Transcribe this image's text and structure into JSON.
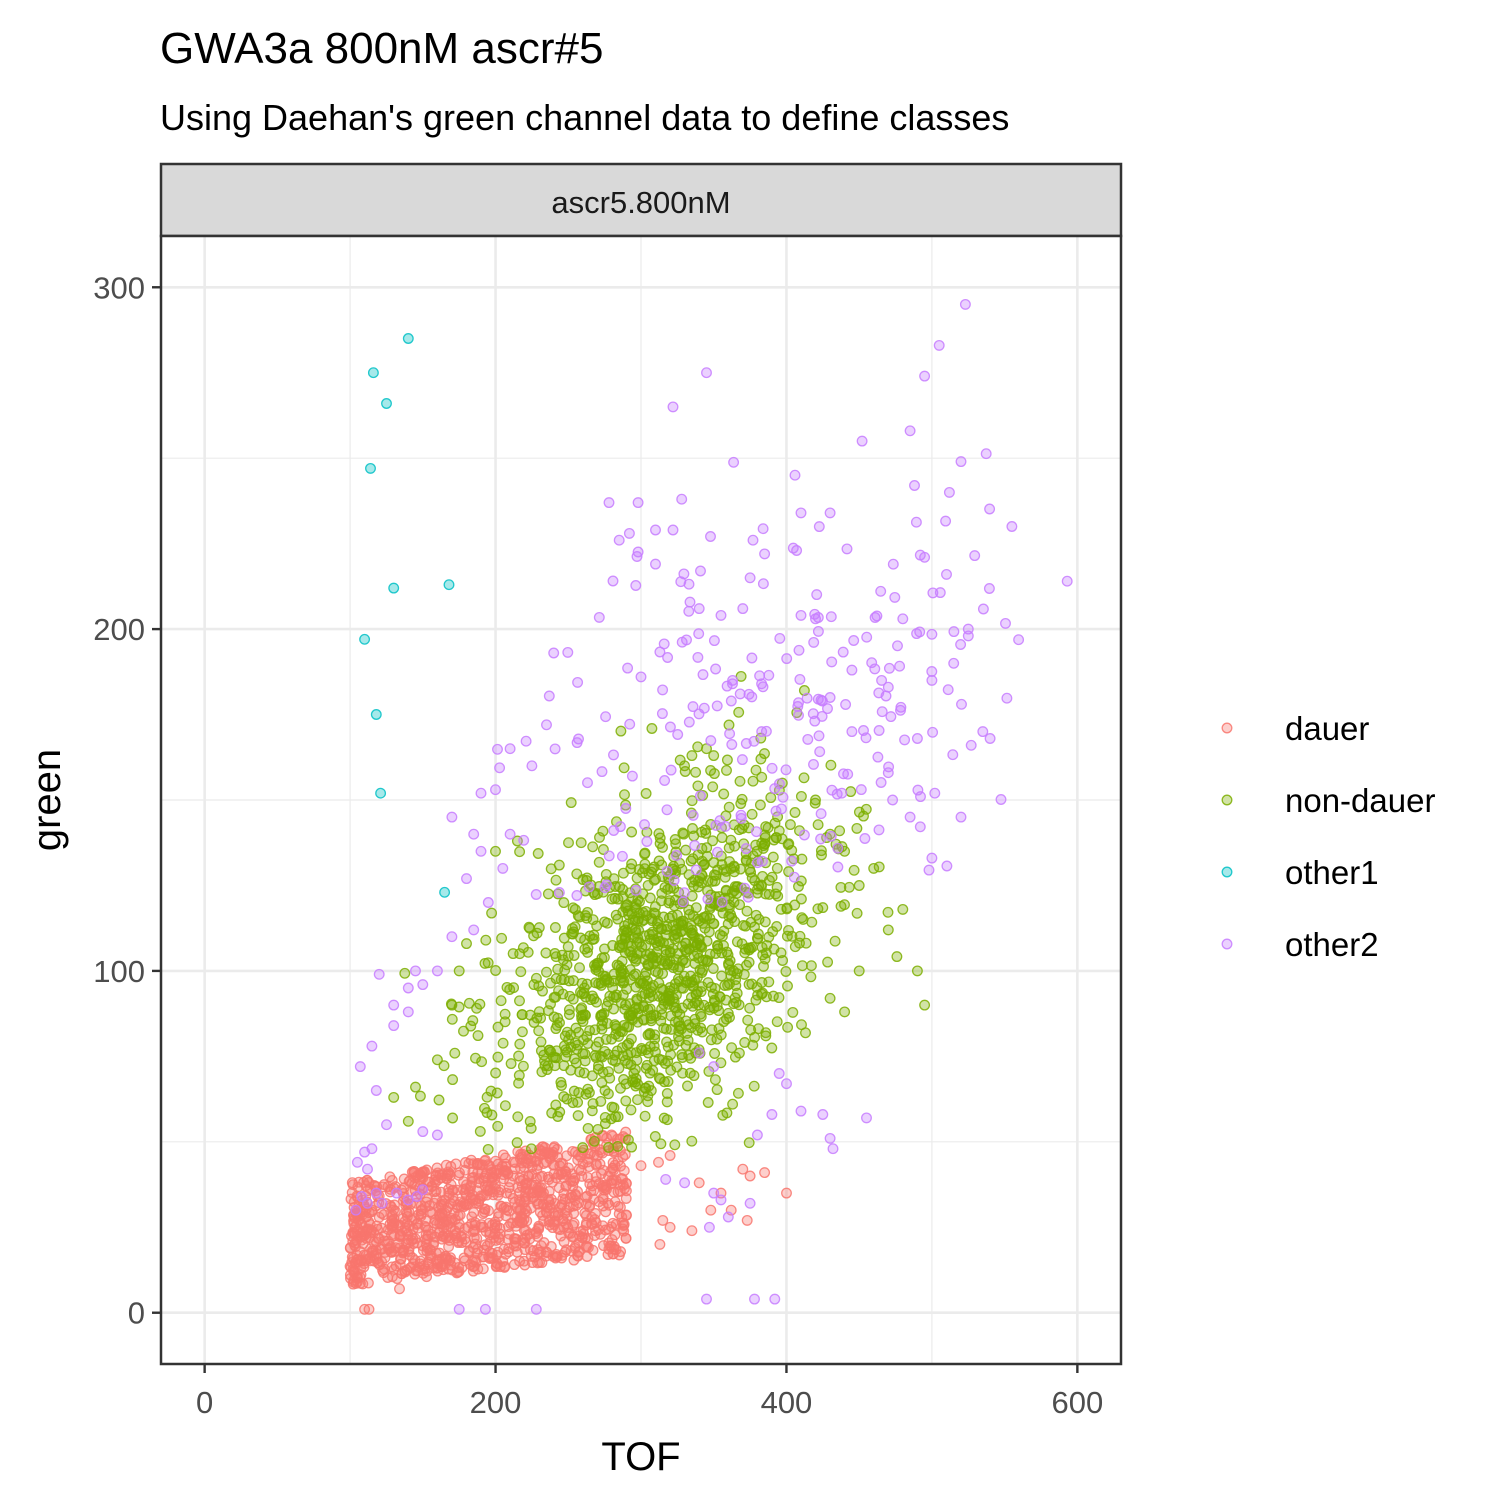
{
  "chart_data": {
    "type": "scatter",
    "title": "GWA3a 800nM ascr#5",
    "subtitle": "Using Daehan's green channel data to define classes",
    "facet_label": "ascr5.800nM",
    "xlabel": "TOF",
    "ylabel": "green",
    "xlim": [
      -30,
      630
    ],
    "ylim": [
      -15,
      315
    ],
    "xticks": [
      0,
      200,
      400,
      600
    ],
    "yticks": [
      0,
      100,
      200,
      300
    ],
    "grid": true,
    "legend_position": "right",
    "series": [
      {
        "name": "dauer",
        "color": "#F8766D",
        "generator": {
          "x_range": [
            100,
            290
          ],
          "y_base": [
            8,
            38
          ],
          "y_slope": 0.08,
          "count": 1100,
          "seed": 11
        },
        "points": [
          [
            110,
            1
          ],
          [
            113,
            1
          ],
          [
            134,
            7
          ],
          [
            165,
            33
          ],
          [
            235,
            44
          ],
          [
            255,
            47
          ],
          [
            270,
            46
          ],
          [
            300,
            43
          ],
          [
            312,
            44
          ],
          [
            320,
            46
          ],
          [
            340,
            38
          ],
          [
            355,
            35
          ],
          [
            362,
            30
          ],
          [
            370,
            42
          ],
          [
            375,
            40
          ],
          [
            385,
            41
          ],
          [
            400,
            35
          ],
          [
            315,
            27
          ],
          [
            320,
            25
          ],
          [
            335,
            24
          ],
          [
            348,
            30
          ],
          [
            373,
            27
          ],
          [
            313,
            20
          ]
        ]
      },
      {
        "name": "non-dauer",
        "color": "#7CAE00",
        "generator": {
          "center": [
            310,
            100
          ],
          "sd": [
            55,
            26
          ],
          "corr": 0.45,
          "count": 1200,
          "seed": 23,
          "y_min": 47
        },
        "points": [
          [
            130,
            63
          ],
          [
            140,
            56
          ],
          [
            145,
            66
          ],
          [
            160,
            74
          ],
          [
            170,
            90
          ],
          [
            175,
            100
          ],
          [
            180,
            108
          ],
          [
            200,
            135
          ],
          [
            215,
            138
          ],
          [
            330,
            160
          ],
          [
            335,
            163
          ],
          [
            345,
            165
          ],
          [
            350,
            163
          ],
          [
            420,
            150
          ],
          [
            430,
            140
          ],
          [
            440,
            135
          ],
          [
            450,
            125
          ],
          [
            460,
            130
          ],
          [
            470,
            112
          ],
          [
            480,
            118
          ],
          [
            490,
            100
          ],
          [
            495,
            90
          ],
          [
            440,
            88
          ],
          [
            430,
            92
          ],
          [
            450,
            100
          ]
        ]
      },
      {
        "name": "other1",
        "color": "#00BFC4",
        "points": [
          [
            140,
            285
          ],
          [
            116,
            275
          ],
          [
            125,
            266
          ],
          [
            114,
            247
          ],
          [
            130,
            212
          ],
          [
            168,
            213
          ],
          [
            110,
            197
          ],
          [
            118,
            175
          ],
          [
            121,
            152
          ],
          [
            165,
            123
          ]
        ]
      },
      {
        "name": "other2",
        "color": "#C77CFF",
        "generator": {
          "center": [
            380,
            170
          ],
          "sd": [
            75,
            35
          ],
          "corr": 0.3,
          "count": 220,
          "seed": 37,
          "y_min": 120,
          "x_min": 180
        },
        "points": [
          [
            523,
            295
          ],
          [
            505,
            283
          ],
          [
            345,
            275
          ],
          [
            495,
            274
          ],
          [
            322,
            265
          ],
          [
            485,
            258
          ],
          [
            452,
            255
          ],
          [
            520,
            249
          ],
          [
            488,
            242
          ],
          [
            512,
            240
          ],
          [
            328,
            238
          ],
          [
            278,
            237
          ],
          [
            298,
            237
          ],
          [
            555,
            230
          ],
          [
            310,
            229
          ],
          [
            322,
            229
          ],
          [
            292,
            228
          ],
          [
            285,
            226
          ],
          [
            410,
            234
          ],
          [
            430,
            234
          ],
          [
            377,
            226
          ],
          [
            385,
            222
          ],
          [
            407,
            223
          ],
          [
            310,
            219
          ],
          [
            495,
            221
          ],
          [
            510,
            216
          ],
          [
            593,
            214
          ],
          [
            375,
            215
          ],
          [
            340,
            206
          ],
          [
            355,
            204
          ],
          [
            370,
            206
          ],
          [
            410,
            204
          ],
          [
            420,
            203
          ],
          [
            480,
            203
          ],
          [
            525,
            200
          ],
          [
            525,
            198
          ],
          [
            300,
            186
          ],
          [
            363,
            185
          ],
          [
            383,
            170
          ],
          [
            430,
            180
          ],
          [
            470,
            183
          ],
          [
            500,
            185
          ],
          [
            535,
            170
          ],
          [
            527,
            166
          ],
          [
            490,
            168
          ],
          [
            445,
            170
          ],
          [
            240,
            193
          ],
          [
            235,
            172
          ],
          [
            225,
            160
          ],
          [
            210,
            165
          ],
          [
            200,
            153
          ],
          [
            190,
            152
          ],
          [
            185,
            140
          ],
          [
            170,
            145
          ],
          [
            190,
            135
          ],
          [
            210,
            140
          ],
          [
            205,
            130
          ],
          [
            180,
            127
          ],
          [
            170,
            110
          ],
          [
            160,
            100
          ],
          [
            185,
            112
          ],
          [
            195,
            120
          ],
          [
            150,
            96
          ],
          [
            145,
            100
          ],
          [
            140,
            95
          ],
          [
            130,
            90
          ],
          [
            120,
            99
          ],
          [
            140,
            88
          ],
          [
            130,
            84
          ],
          [
            115,
            78
          ],
          [
            107,
            72
          ],
          [
            118,
            65
          ],
          [
            125,
            55
          ],
          [
            110,
            47
          ],
          [
            115,
            48
          ],
          [
            105,
            44
          ],
          [
            112,
            42
          ],
          [
            150,
            53
          ],
          [
            160,
            52
          ],
          [
            108,
            34
          ],
          [
            104,
            30
          ],
          [
            112,
            32
          ],
          [
            118,
            35
          ],
          [
            122,
            32
          ],
          [
            132,
            35
          ],
          [
            140,
            33
          ],
          [
            146,
            34
          ],
          [
            150,
            36
          ],
          [
            345,
            4
          ],
          [
            378,
            4
          ],
          [
            392,
            4
          ],
          [
            175,
            1
          ],
          [
            193,
            1
          ],
          [
            228,
            1
          ],
          [
            410,
            59
          ],
          [
            425,
            58
          ],
          [
            455,
            57
          ],
          [
            430,
            51
          ],
          [
            432,
            48
          ],
          [
            380,
            52
          ],
          [
            390,
            58
          ],
          [
            395,
            70
          ],
          [
            340,
            76
          ],
          [
            350,
            72
          ],
          [
            400,
            67
          ],
          [
            317,
            39
          ],
          [
            330,
            38
          ],
          [
            350,
            35
          ],
          [
            355,
            33
          ],
          [
            375,
            32
          ],
          [
            347,
            25
          ],
          [
            360,
            28
          ],
          [
            470,
            158
          ],
          [
            473,
            150
          ],
          [
            485,
            145
          ],
          [
            502,
            152
          ],
          [
            500,
            133
          ],
          [
            520,
            145
          ],
          [
            540,
            168
          ],
          [
            515,
            190
          ]
        ]
      }
    ]
  }
}
